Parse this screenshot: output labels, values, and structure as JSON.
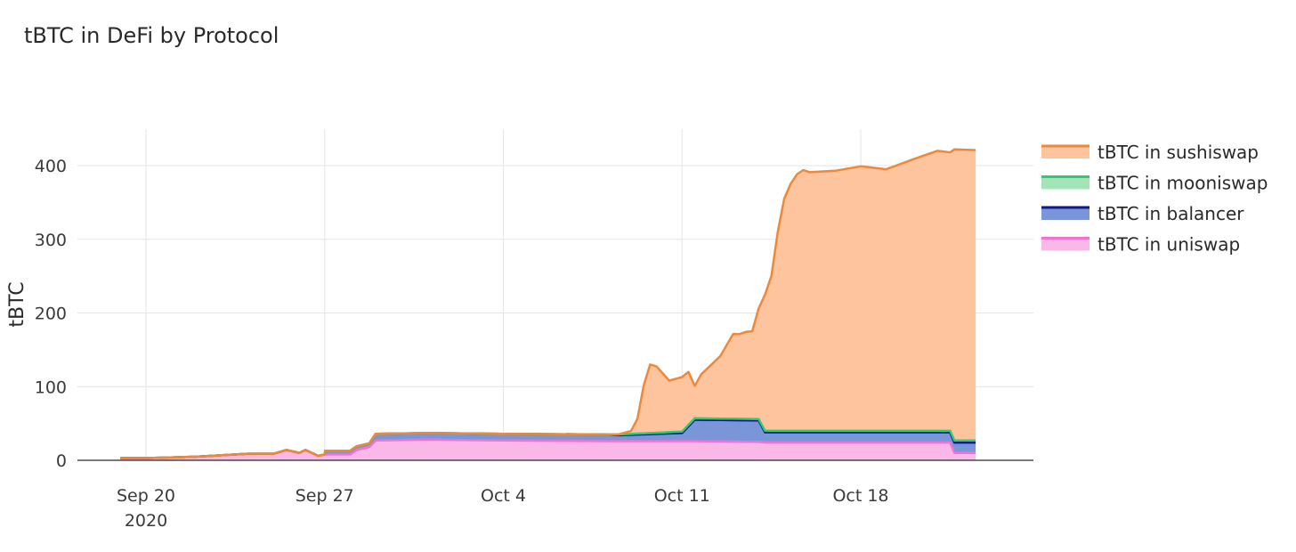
{
  "chart_data": {
    "type": "area",
    "stacked": true,
    "title": "tBTC in DeFi by Protocol",
    "xlabel": "",
    "ylabel": "tBTC",
    "x_type": "date",
    "xlim": [
      "2020-09-16",
      "2020-10-25"
    ],
    "ylim": [
      0,
      450
    ],
    "yticks": [
      0,
      100,
      200,
      300,
      400
    ],
    "ytick_labels": [
      "0",
      "100",
      "200",
      "300",
      "400"
    ],
    "xticks": [
      {
        "date": "2020-09-20",
        "label": "Sep 20",
        "sublabel": "2020"
      },
      {
        "date": "2020-09-27",
        "label": "Sep 27",
        "sublabel": ""
      },
      {
        "date": "2020-10-04",
        "label": "Oct 4",
        "sublabel": ""
      },
      {
        "date": "2020-10-11",
        "label": "Oct 11",
        "sublabel": ""
      },
      {
        "date": "2020-10-18",
        "label": "Oct 18",
        "sublabel": ""
      }
    ],
    "grid": true,
    "legend_position": "right",
    "series": [
      {
        "name": "tBTC in uniswap",
        "line_color": "#f472d0",
        "fill_color": "#f9b8e8",
        "points": [
          [
            "2020-09-19",
            3
          ],
          [
            "2020-09-20",
            3
          ],
          [
            "2020-09-21",
            4
          ],
          [
            "2020-09-22",
            5
          ],
          [
            "2020-09-23",
            7
          ],
          [
            "2020-09-24",
            9
          ],
          [
            "2020-09-25",
            9
          ],
          [
            "2020-09-25 12:00",
            14
          ],
          [
            "2020-09-26",
            10
          ],
          [
            "2020-09-26 06:00",
            14
          ],
          [
            "2020-09-26 18:00",
            6
          ],
          [
            "2020-09-27",
            8
          ],
          [
            "2020-09-28",
            8
          ],
          [
            "2020-09-28 06:00",
            14
          ],
          [
            "2020-09-28 18:00",
            18
          ],
          [
            "2020-09-29",
            27
          ],
          [
            "2020-10-01",
            28
          ],
          [
            "2020-10-04",
            27
          ],
          [
            "2020-10-08",
            26
          ],
          [
            "2020-10-11",
            26
          ],
          [
            "2020-10-11 12:00",
            26
          ],
          [
            "2020-10-14",
            25
          ],
          [
            "2020-10-14 06:00",
            24
          ],
          [
            "2020-10-18",
            24
          ],
          [
            "2020-10-21",
            24
          ],
          [
            "2020-10-21 12:00",
            24
          ],
          [
            "2020-10-21 16:00",
            10
          ],
          [
            "2020-10-22 12:00",
            10
          ]
        ]
      },
      {
        "name": "tBTC in balancer",
        "line_color": "#0d1a8c",
        "fill_color": "#7b96d8",
        "points": [
          [
            "2020-09-19",
            0
          ],
          [
            "2020-09-27",
            0
          ],
          [
            "2020-09-27 00:30",
            5
          ],
          [
            "2020-09-28",
            5
          ],
          [
            "2020-09-28 06:00",
            5
          ],
          [
            "2020-09-28 18:00",
            5
          ],
          [
            "2020-09-29",
            9
          ],
          [
            "2020-10-04",
            9
          ],
          [
            "2020-10-08",
            9
          ],
          [
            "2020-10-08 12:00",
            8
          ],
          [
            "2020-10-11",
            11
          ],
          [
            "2020-10-11 12:00",
            29
          ],
          [
            "2020-10-14",
            29
          ],
          [
            "2020-10-14 06:00",
            14
          ],
          [
            "2020-10-18",
            14
          ],
          [
            "2020-10-21",
            14
          ],
          [
            "2020-10-21 12:00",
            14
          ],
          [
            "2020-10-21 16:00",
            14
          ],
          [
            "2020-10-22 12:00",
            14
          ]
        ]
      },
      {
        "name": "tBTC in mooniswap",
        "line_color": "#2ecc71",
        "fill_color": "#a3e4b8",
        "points": [
          [
            "2020-09-19",
            0
          ],
          [
            "2020-10-08",
            0
          ],
          [
            "2020-10-08 12:00",
            1
          ],
          [
            "2020-10-11",
            2
          ],
          [
            "2020-10-11 12:00",
            2
          ],
          [
            "2020-10-14",
            2
          ],
          [
            "2020-10-14 06:00",
            2
          ],
          [
            "2020-10-21",
            2
          ],
          [
            "2020-10-21 12:00",
            2
          ],
          [
            "2020-10-21 16:00",
            3
          ],
          [
            "2020-10-22 12:00",
            3
          ]
        ]
      },
      {
        "name": "tBTC in sushiswap",
        "line_color": "#f0883a",
        "fill_color": "#fdc49e",
        "points": [
          [
            "2020-09-19",
            0
          ],
          [
            "2020-10-08 12:00",
            0
          ],
          [
            "2020-10-09",
            4
          ],
          [
            "2020-10-09 06:00",
            20
          ],
          [
            "2020-10-09 12:00",
            65
          ],
          [
            "2020-10-09 18:00",
            93
          ],
          [
            "2020-10-10",
            90
          ],
          [
            "2020-10-10 06:00",
            80
          ],
          [
            "2020-10-10 12:00",
            70
          ],
          [
            "2020-10-11",
            74
          ],
          [
            "2020-10-11 06:00",
            72
          ],
          [
            "2020-10-11 12:00",
            44
          ],
          [
            "2020-10-11 18:00",
            60
          ],
          [
            "2020-10-12",
            68
          ],
          [
            "2020-10-12 12:00",
            85
          ],
          [
            "2020-10-13",
            115
          ],
          [
            "2020-10-13 06:00",
            115
          ],
          [
            "2020-10-13 12:00",
            118
          ],
          [
            "2020-10-13 18:00",
            119
          ],
          [
            "2020-10-14",
            150
          ],
          [
            "2020-10-14 06:00",
            185
          ],
          [
            "2020-10-14 12:00",
            210
          ],
          [
            "2020-10-14 18:00",
            270
          ],
          [
            "2020-10-15",
            315
          ],
          [
            "2020-10-15 06:00",
            335
          ],
          [
            "2020-10-15 12:00",
            348
          ],
          [
            "2020-10-15 18:00",
            354
          ],
          [
            "2020-10-16",
            351
          ],
          [
            "2020-10-17",
            353
          ],
          [
            "2020-10-18",
            359
          ],
          [
            "2020-10-19",
            355
          ],
          [
            "2020-10-20",
            368
          ],
          [
            "2020-10-21",
            380
          ],
          [
            "2020-10-21 12:00",
            378
          ],
          [
            "2020-10-21 16:00",
            395
          ],
          [
            "2020-10-22 12:00",
            394
          ]
        ]
      }
    ]
  }
}
